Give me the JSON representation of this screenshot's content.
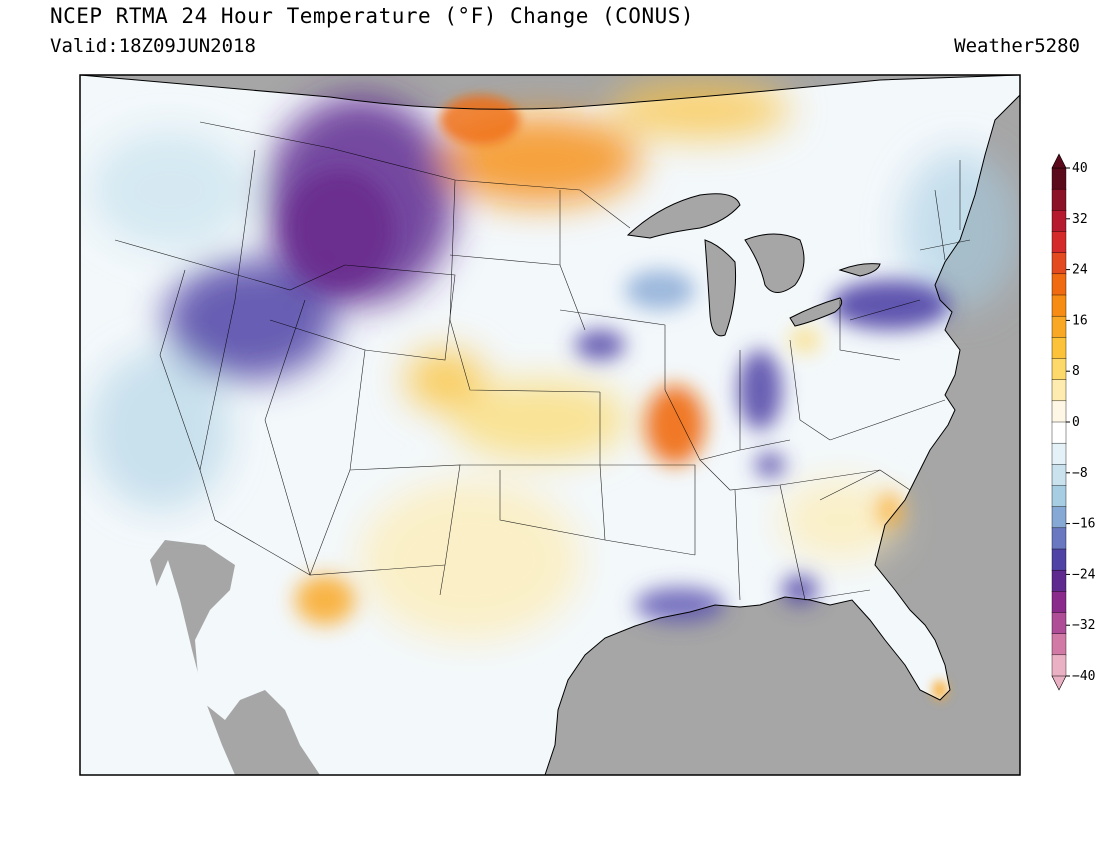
{
  "header": {
    "title": "NCEP RTMA 24 Hour Temperature (°F) Change (CONUS)",
    "valid": "Valid:18Z09JUN2018",
    "credit": "Weather5280"
  },
  "colors": {
    "land_neutral": "#f7fbff",
    "ocean": "#a6a6a6",
    "border": "#000000"
  },
  "colorbar": {
    "ticks": [
      "40",
      "32",
      "24",
      "16",
      "8",
      "0",
      "−8",
      "−16",
      "−24",
      "−32",
      "−40"
    ],
    "levels": [
      40,
      36,
      32,
      28,
      24,
      20,
      16,
      12,
      8,
      4,
      0,
      -4,
      -8,
      -12,
      -16,
      -20,
      -24,
      -28,
      -32,
      -36,
      -40
    ],
    "colors": [
      "#5a0a1a",
      "#8c1026",
      "#b51a2e",
      "#d42a2a",
      "#e34a1e",
      "#ef6a10",
      "#f68c14",
      "#f9a825",
      "#fbc23a",
      "#fcd96a",
      "#fdebb0",
      "#fff7e6",
      "#ffffff",
      "#e4f1f7",
      "#c9e2ee",
      "#a6cde2",
      "#86a8d5",
      "#6a78c1",
      "#4f43a6",
      "#5e2a8f",
      "#8a2b8c",
      "#b04d97",
      "#d17aa6",
      "#eab0c4"
    ]
  },
  "anomalies": [
    {
      "name": "northern-rockies-cooling",
      "value": -24
    },
    {
      "name": "great-basin-cooling",
      "value": -22
    },
    {
      "name": "upper-midwest-warming",
      "value": 14
    },
    {
      "name": "missouri-warming",
      "value": 18
    },
    {
      "name": "colorado-warming",
      "value": 10
    },
    {
      "name": "pennsylvania-cooling",
      "value": -22
    },
    {
      "name": "arizona-warming",
      "value": 12
    },
    {
      "name": "indiana-cooling",
      "value": -20
    },
    {
      "name": "louisiana-cooling",
      "value": -20
    },
    {
      "name": "iowa-cooling",
      "value": -22
    },
    {
      "name": "tennessee-cooling",
      "value": -20
    },
    {
      "name": "alabama-cooling",
      "value": -20
    }
  ]
}
